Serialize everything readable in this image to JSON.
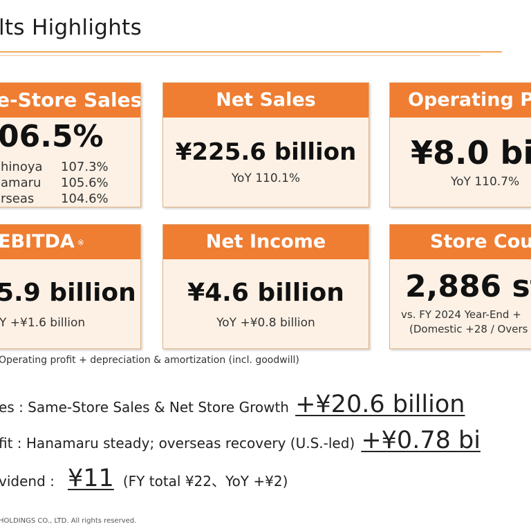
{
  "title": "lts Highlights",
  "cards": {
    "same_store": {
      "header": "e-Store Sales",
      "value": "06.5%",
      "rows": [
        {
          "name": "hinoya",
          "value": "107.3%"
        },
        {
          "name": "amaru",
          "value": "105.6%"
        },
        {
          "name": "rseas",
          "value": "104.6%"
        }
      ]
    },
    "net_sales": {
      "header": "Net Sales",
      "value": "¥225.6 billion",
      "sub": "YoY 110.1%"
    },
    "operating_profit": {
      "header": "Operating P",
      "value": "¥8.0 bil",
      "sub": "YoY 110.7%"
    },
    "ebitda": {
      "header": "EBITDA",
      "mark": "※",
      "value": "5.9 billion",
      "sub": "Y +¥1.6 billion"
    },
    "net_income": {
      "header": "Net Income",
      "value": "¥4.6 billion",
      "sub": "YoY +¥0.8 billion"
    },
    "store_count": {
      "header": "Store Cou",
      "value": "2,886 st",
      "sub1": "vs. FY 2024 Year-End +",
      "sub2": "(Domestic +28 / Overs"
    }
  },
  "note": "Operating profit + depreciation & amortization (incl. goodwill)",
  "summary": {
    "sales": {
      "label": "es : Same-Store Sales & Net Store Growth",
      "value": "+¥20.6 billion"
    },
    "profit": {
      "label": "fit : Hanamaru steady; overseas recovery (U.S.-led)",
      "value": "+¥0.78 bi"
    },
    "dividend": {
      "label": "vidend :",
      "value": "¥11",
      "detail": "(FY total ¥22、YoY +¥2)"
    }
  },
  "footer": "HOLDINGS CO., LTD.   All rights reserved.",
  "colors": {
    "accent": "#ef7d32",
    "card_bg": "#fdf1e5",
    "rule": "#f0a85a"
  }
}
